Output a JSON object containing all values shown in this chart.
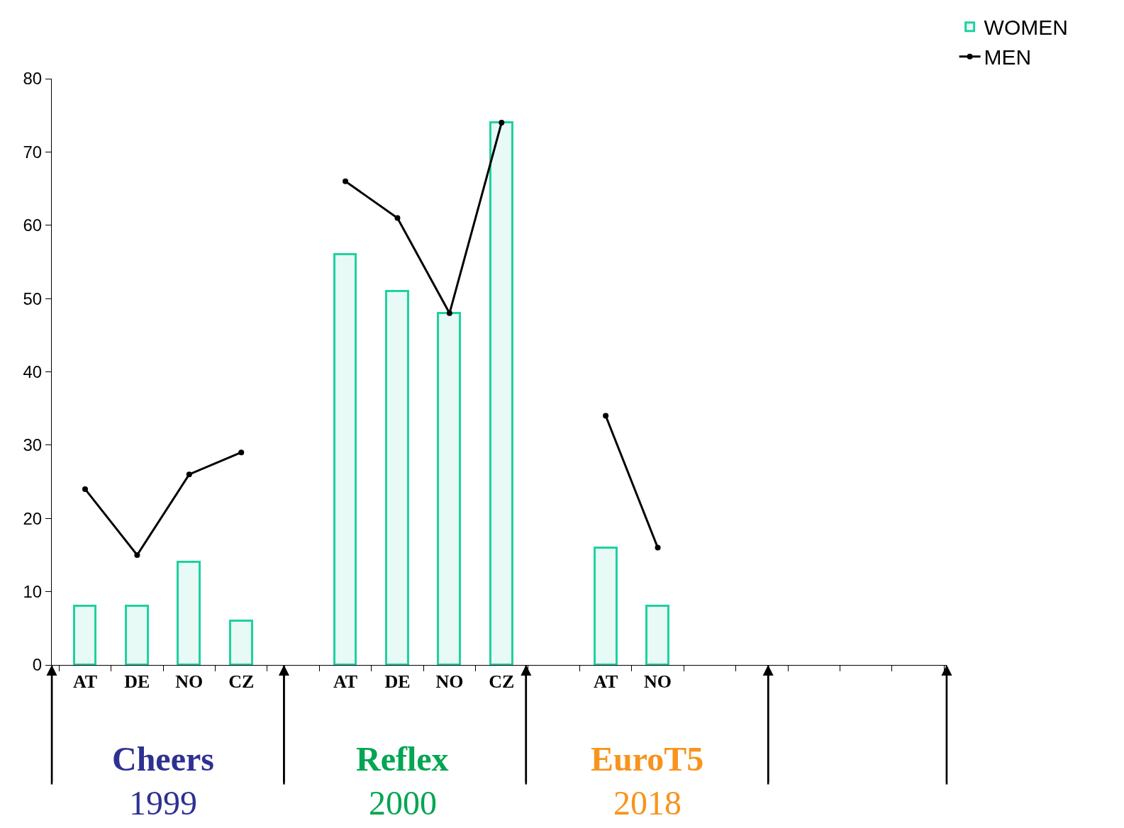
{
  "chart_data": {
    "type": "bar",
    "categories": [
      "AT",
      "DE",
      "NO",
      "CZ",
      null,
      "AT",
      "DE",
      "NO",
      "CZ",
      null,
      "AT",
      "NO",
      null,
      null,
      null,
      null,
      null
    ],
    "series": [
      {
        "name": "WOMEN",
        "color": "#1fd1a0",
        "values": [
          8,
          8,
          14,
          6,
          null,
          56,
          51,
          48,
          74,
          null,
          16,
          8,
          null,
          null,
          null,
          null,
          null
        ]
      },
      {
        "name": "MEN",
        "type": "line",
        "color": "#000000",
        "marker": "circle",
        "values": [
          24,
          15,
          26,
          29,
          null,
          66,
          61,
          48,
          74,
          null,
          34,
          16,
          null,
          null,
          null,
          null,
          null
        ]
      }
    ],
    "ylim": [
      0,
      80
    ],
    "yticks": [
      0,
      10,
      20,
      30,
      40,
      50,
      60,
      70,
      80
    ],
    "legend": "top right",
    "annotations": [
      "Cheers",
      "1999",
      "Reflex",
      "2000",
      "EuroT5",
      "2018"
    ]
  }
}
